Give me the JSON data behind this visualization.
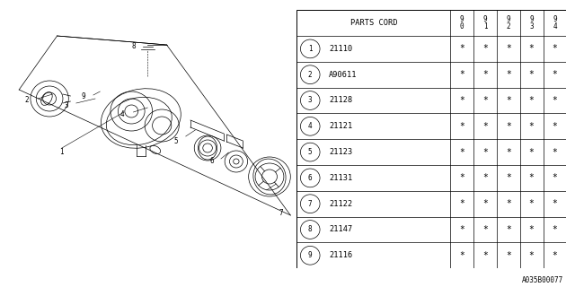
{
  "bg_color": "#ffffff",
  "parts": [
    {
      "num": 1,
      "code": "21110"
    },
    {
      "num": 2,
      "code": "A90611"
    },
    {
      "num": 3,
      "code": "21128"
    },
    {
      "num": 4,
      "code": "21121"
    },
    {
      "num": 5,
      "code": "21123"
    },
    {
      "num": 6,
      "code": "21131"
    },
    {
      "num": 7,
      "code": "21122"
    },
    {
      "num": 8,
      "code": "21147"
    },
    {
      "num": 9,
      "code": "21116"
    }
  ],
  "year_cols": [
    "9\n0",
    "9\n1",
    "9\n2",
    "9\n3",
    "9\n4"
  ],
  "footer_text": "A035B00077",
  "line_color": "#000000",
  "text_color": "#000000"
}
